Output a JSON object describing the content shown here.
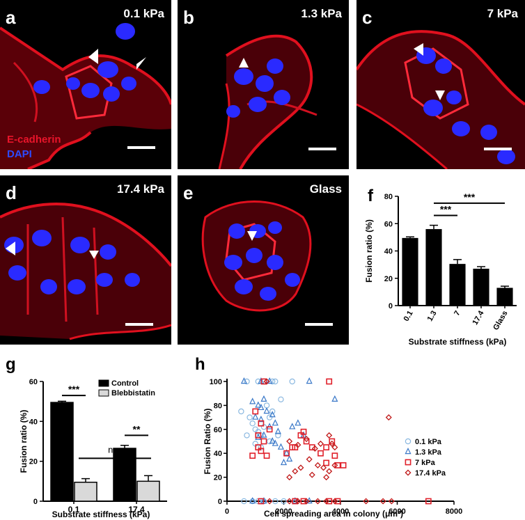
{
  "panels": [
    {
      "letter": "a",
      "label": "0.1 kPa",
      "legend": {
        "ecad": "E-cadherin",
        "dapi": "DAPI"
      }
    },
    {
      "letter": "b",
      "label": "1.3 kPa"
    },
    {
      "letter": "c",
      "label": "7 kPa"
    },
    {
      "letter": "d",
      "label": "17.4 kPa"
    },
    {
      "letter": "e",
      "label": "Glass"
    }
  ],
  "colors": {
    "membrane": "#e0101e",
    "nucleus": "#2a2aff",
    "background": "#000000"
  },
  "chart_data": [
    {
      "id": "f",
      "type": "bar",
      "categories": [
        "0.1",
        "1.3",
        "7",
        "17.4",
        "Glass"
      ],
      "values": [
        49.5,
        56,
        30.5,
        27,
        13
      ],
      "errors": [
        0.8,
        2.8,
        3.2,
        1.5,
        1.2
      ],
      "xlabel": "Substrate stiffness (kPa)",
      "ylabel": "Fusion ratio (%)",
      "ylim": [
        0,
        80
      ],
      "yticks": [
        0,
        20,
        40,
        60,
        80
      ],
      "significance": [
        {
          "from": "1.3",
          "to": "7",
          "label": "***"
        },
        {
          "from": "1.3",
          "to": "Glass",
          "label": "***"
        }
      ]
    },
    {
      "id": "g",
      "type": "bar",
      "categories": [
        "0.1",
        "17.4"
      ],
      "series": [
        {
          "name": "Control",
          "values": [
            49.5,
            26.5
          ],
          "errors": [
            0.6,
            1.5
          ],
          "color": "#000000"
        },
        {
          "name": "Blebbistatin",
          "values": [
            9.5,
            10
          ],
          "errors": [
            1.8,
            2.8
          ],
          "color": "#d9d9d9"
        }
      ],
      "xlabel": "Substrate stiffness (kPa)",
      "ylabel": "Fusion ratio (%)",
      "ylim": [
        0,
        60
      ],
      "yticks": [
        0,
        20,
        40,
        60
      ],
      "significance": [
        {
          "label": "***",
          "pair": "0.1 Control vs Blebbistatin"
        },
        {
          "label": "**",
          "pair": "17.4 Control vs Blebbistatin"
        },
        {
          "label": "ns",
          "pair": "Blebbistatin 0.1 vs 17.4"
        }
      ],
      "legend": "top-right"
    },
    {
      "id": "h",
      "type": "scatter",
      "xlabel": "Cell spreading area in colony  (μm²)",
      "ylabel": "Fusion Ratio (%)",
      "xlim": [
        0,
        8000
      ],
      "ylim": [
        0,
        100
      ],
      "xticks": [
        0,
        2000,
        4000,
        6000,
        8000
      ],
      "yticks": [
        0,
        20,
        40,
        60,
        80,
        100
      ],
      "legend": "right",
      "series": [
        {
          "name": "0.1 kPa",
          "marker": "circle",
          "color": "#8ab8e0",
          "points": [
            [
              700,
              100
            ],
            [
              1100,
              100
            ],
            [
              1300,
              100
            ],
            [
              1600,
              100
            ],
            [
              1700,
              100
            ],
            [
              2300,
              100
            ],
            [
              500,
              75
            ],
            [
              800,
              70
            ],
            [
              900,
              65
            ],
            [
              1000,
              60
            ],
            [
              1100,
              58
            ],
            [
              1200,
              55
            ],
            [
              700,
              55
            ],
            [
              1300,
              62
            ],
            [
              1500,
              70
            ],
            [
              1900,
              85
            ],
            [
              1600,
              75
            ],
            [
              1400,
              80
            ],
            [
              1000,
              48
            ],
            [
              1200,
              45
            ],
            [
              1800,
              55
            ],
            [
              1500,
              50
            ],
            [
              600,
              0
            ],
            [
              900,
              0
            ],
            [
              1100,
              0
            ],
            [
              1300,
              0
            ],
            [
              1700,
              0
            ],
            [
              2000,
              0
            ]
          ]
        },
        {
          "name": "1.3 kPa",
          "marker": "triangle",
          "color": "#3a78c8",
          "points": [
            [
              600,
              100
            ],
            [
              1200,
              100
            ],
            [
              1500,
              100
            ],
            [
              2900,
              100
            ],
            [
              3800,
              85
            ],
            [
              900,
              83
            ],
            [
              1100,
              80
            ],
            [
              1200,
              78
            ],
            [
              1300,
              85
            ],
            [
              1400,
              75
            ],
            [
              1600,
              72
            ],
            [
              1000,
              70
            ],
            [
              1200,
              68
            ],
            [
              1700,
              65
            ],
            [
              1500,
              62
            ],
            [
              1800,
              58
            ],
            [
              1300,
              55
            ],
            [
              1100,
              53
            ],
            [
              1600,
              50
            ],
            [
              2500,
              65
            ],
            [
              2300,
              62
            ],
            [
              2700,
              55
            ],
            [
              1900,
              45
            ],
            [
              2100,
              40
            ],
            [
              2200,
              35
            ],
            [
              2000,
              32
            ],
            [
              1700,
              48
            ],
            [
              900,
              0
            ],
            [
              1300,
              0
            ],
            [
              2400,
              0
            ],
            [
              2900,
              0
            ]
          ]
        },
        {
          "name": "7 kPa",
          "marker": "square",
          "color": "#e0202a",
          "points": [
            [
              1300,
              100
            ],
            [
              3600,
              100
            ],
            [
              1000,
              75
            ],
            [
              1200,
              65
            ],
            [
              1500,
              60
            ],
            [
              1100,
              55
            ],
            [
              1300,
              50
            ],
            [
              1100,
              45
            ],
            [
              1200,
              42
            ],
            [
              900,
              38
            ],
            [
              1400,
              38
            ],
            [
              2400,
              45
            ],
            [
              2600,
              55
            ],
            [
              2800,
              50
            ],
            [
              2700,
              58
            ],
            [
              3000,
              45
            ],
            [
              3300,
              40
            ],
            [
              3500,
              45
            ],
            [
              3700,
              50
            ],
            [
              3500,
              32
            ],
            [
              3800,
              38
            ],
            [
              2100,
              40
            ],
            [
              2300,
              45
            ],
            [
              3900,
              30
            ],
            [
              4100,
              30
            ],
            [
              1200,
              0
            ],
            [
              2400,
              0
            ],
            [
              2700,
              0
            ],
            [
              3600,
              0
            ],
            [
              3900,
              0
            ],
            [
              7100,
              0
            ]
          ]
        },
        {
          "name": "17.4 kPa",
          "marker": "diamond",
          "color": "#c01818",
          "points": [
            [
              1400,
              100
            ],
            [
              5700,
              70
            ],
            [
              2200,
              50
            ],
            [
              2500,
              47
            ],
            [
              2800,
              52
            ],
            [
              3100,
              44
            ],
            [
              3300,
              48
            ],
            [
              3600,
              55
            ],
            [
              3700,
              48
            ],
            [
              3800,
              45
            ],
            [
              2900,
              35
            ],
            [
              3200,
              30
            ],
            [
              3400,
              28
            ],
            [
              3600,
              25
            ],
            [
              3800,
              30
            ],
            [
              2600,
              28
            ],
            [
              2400,
              25
            ],
            [
              2200,
              20
            ],
            [
              3000,
              22
            ],
            [
              3500,
              20
            ],
            [
              1500,
              0
            ],
            [
              2200,
              0
            ],
            [
              2500,
              0
            ],
            [
              2800,
              0
            ],
            [
              3200,
              0
            ],
            [
              3500,
              0
            ],
            [
              3800,
              0
            ],
            [
              4900,
              0
            ],
            [
              5500,
              0
            ],
            [
              5800,
              0
            ]
          ]
        }
      ]
    }
  ]
}
